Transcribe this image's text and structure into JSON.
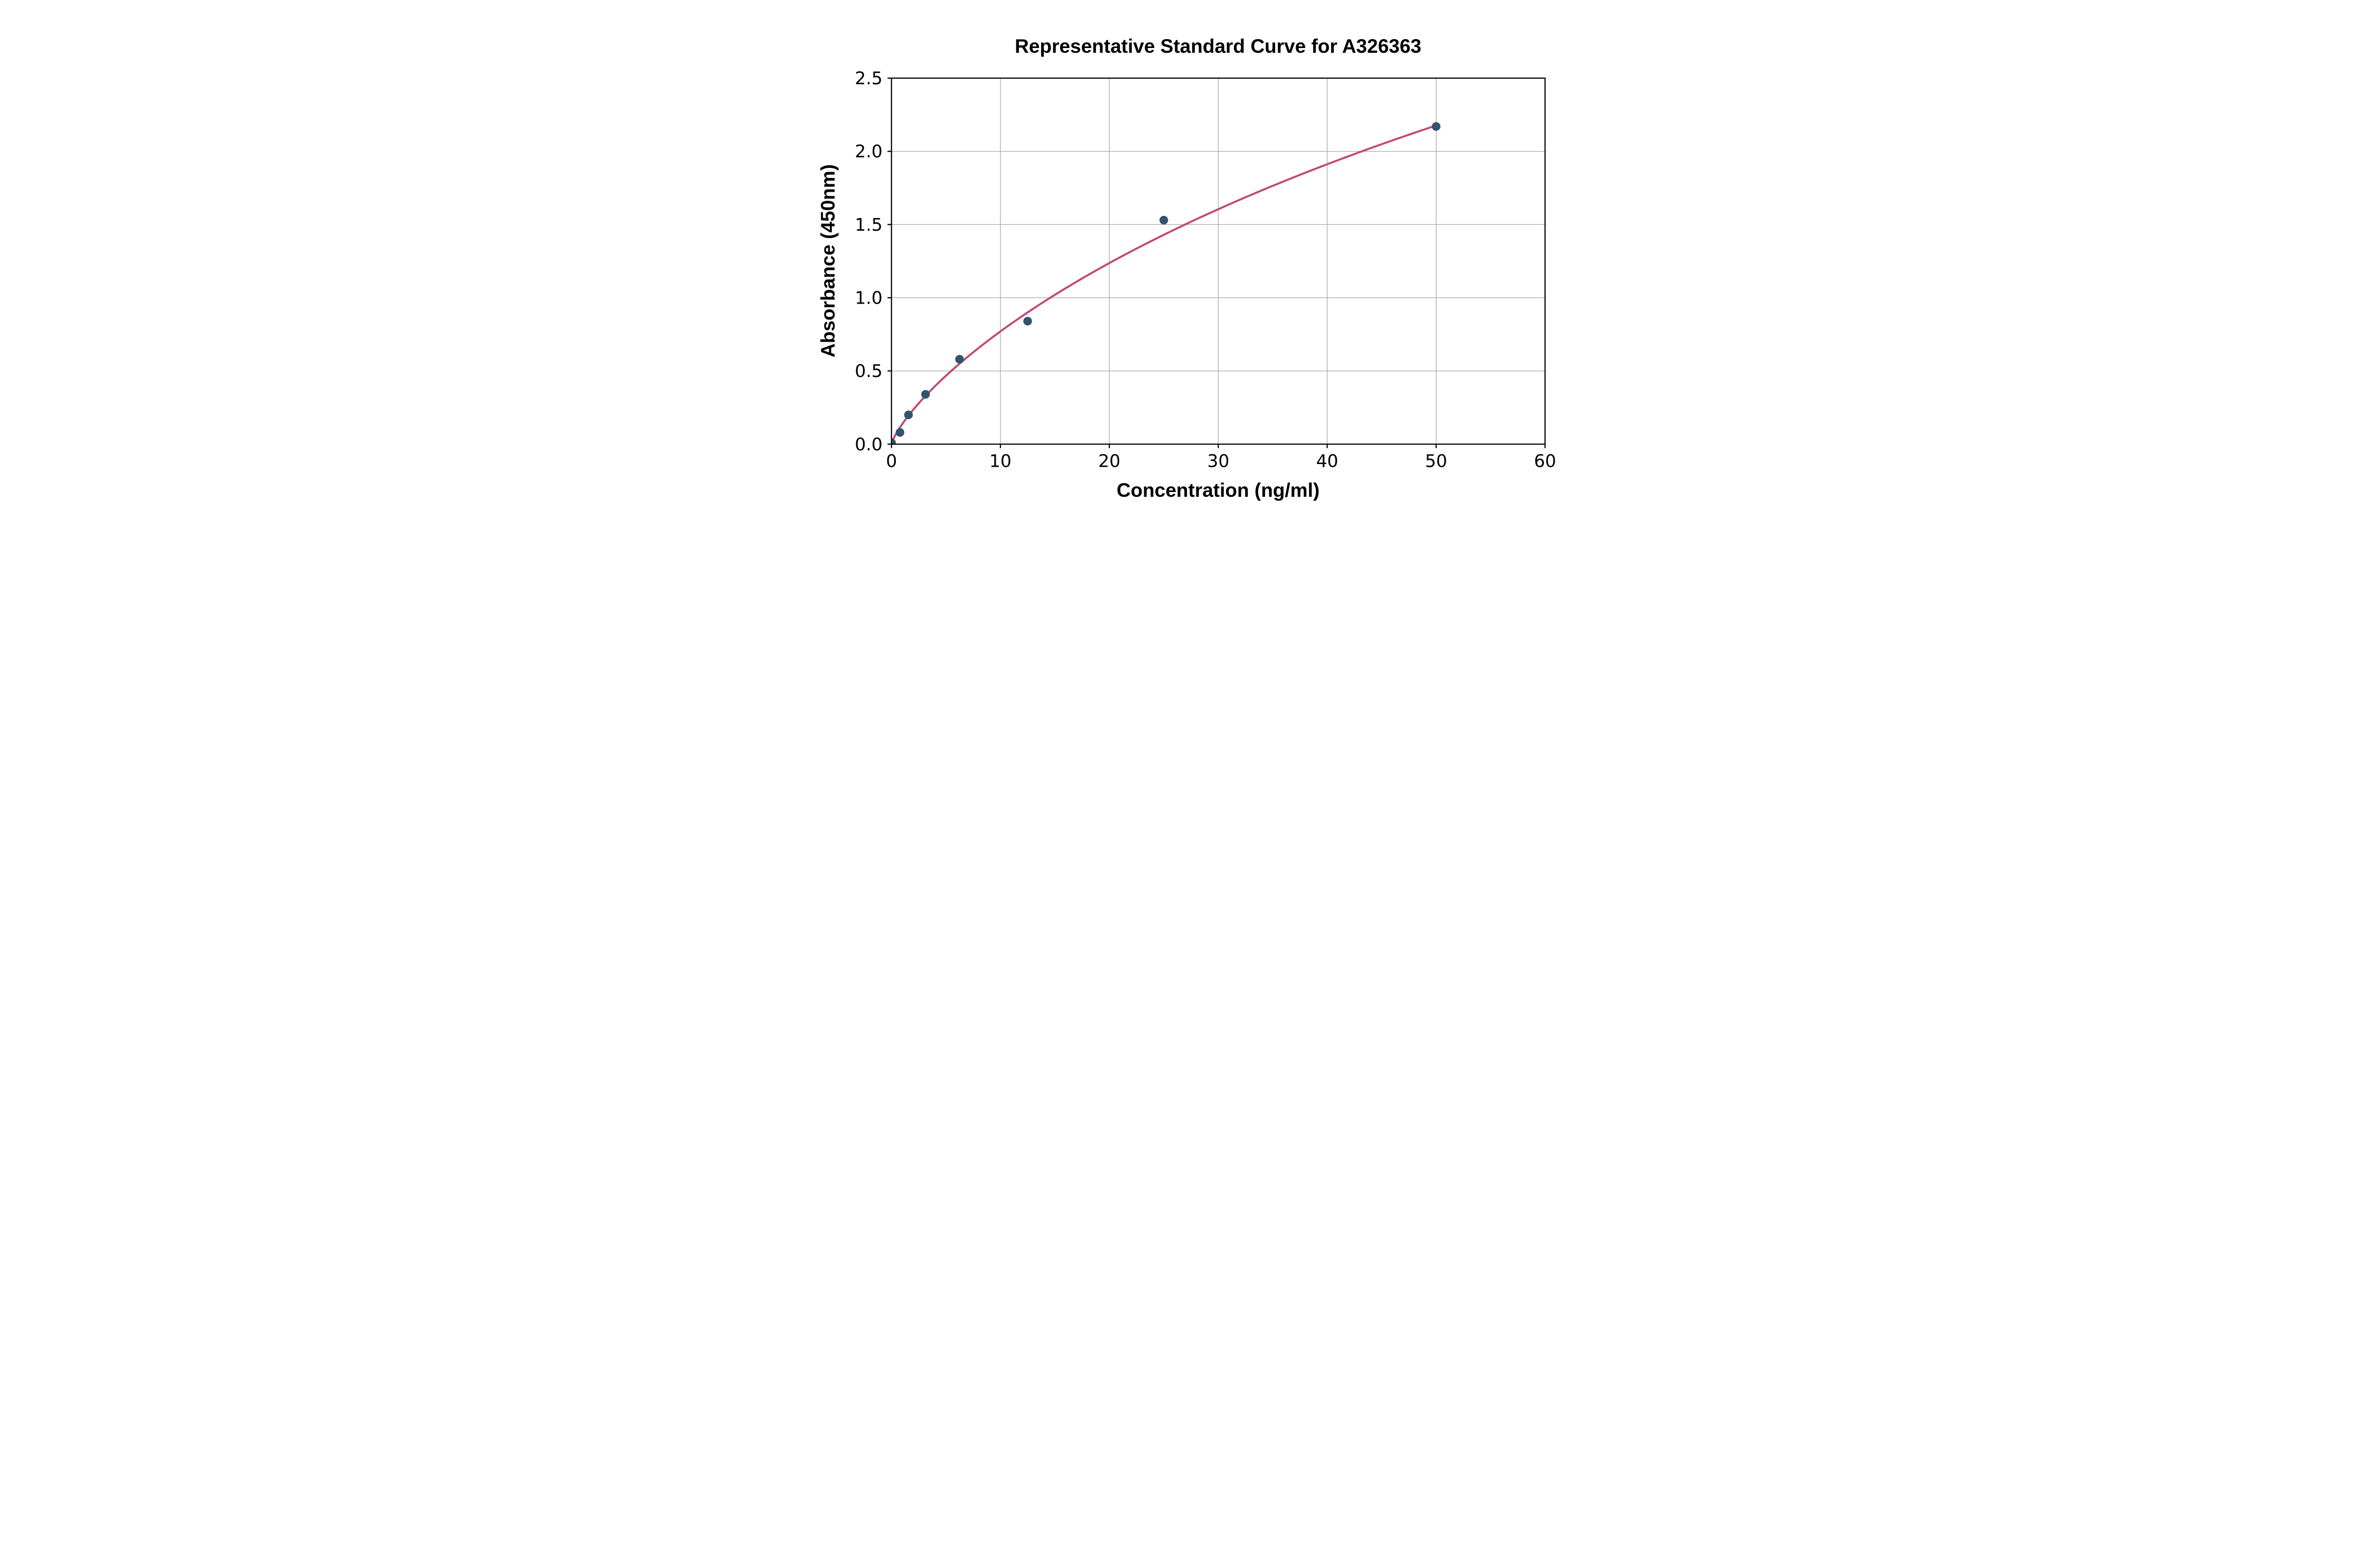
{
  "figure": {
    "background": "#ffffff"
  },
  "chart_data": {
    "type": "scatter",
    "title": "Representative Standard Curve for A326363",
    "xlabel": "Concentration (ng/ml)",
    "ylabel": "Absorbance (450nm)",
    "xlim": [
      0,
      60
    ],
    "ylim": [
      0,
      2.5
    ],
    "x_ticks": [
      0,
      10,
      20,
      30,
      40,
      50,
      60
    ],
    "y_ticks": [
      "0.0",
      "0.5",
      "1.0",
      "1.5",
      "2.0",
      "2.5"
    ],
    "grid": "on",
    "legend": "none",
    "series": [
      {
        "name": "standards",
        "style": "scatter",
        "x": [
          0,
          0.78,
          1.56,
          3.125,
          6.25,
          12.5,
          25,
          50
        ],
        "y": [
          0.01,
          0.08,
          0.2,
          0.34,
          0.58,
          0.84,
          1.53,
          2.17
        ]
      },
      {
        "name": "fitted-curve",
        "style": "line",
        "fit": {
          "model": "4PL",
          "bottom": 0,
          "top": 8,
          "inflection": 176.6,
          "hill": 0.78,
          "x_range": [
            0,
            50
          ]
        }
      }
    ],
    "colors": {
      "marker": "#34536f",
      "curve": "#c14a70",
      "grid": "#b0b0b0",
      "axis": "#000000",
      "text": "#000000"
    }
  }
}
